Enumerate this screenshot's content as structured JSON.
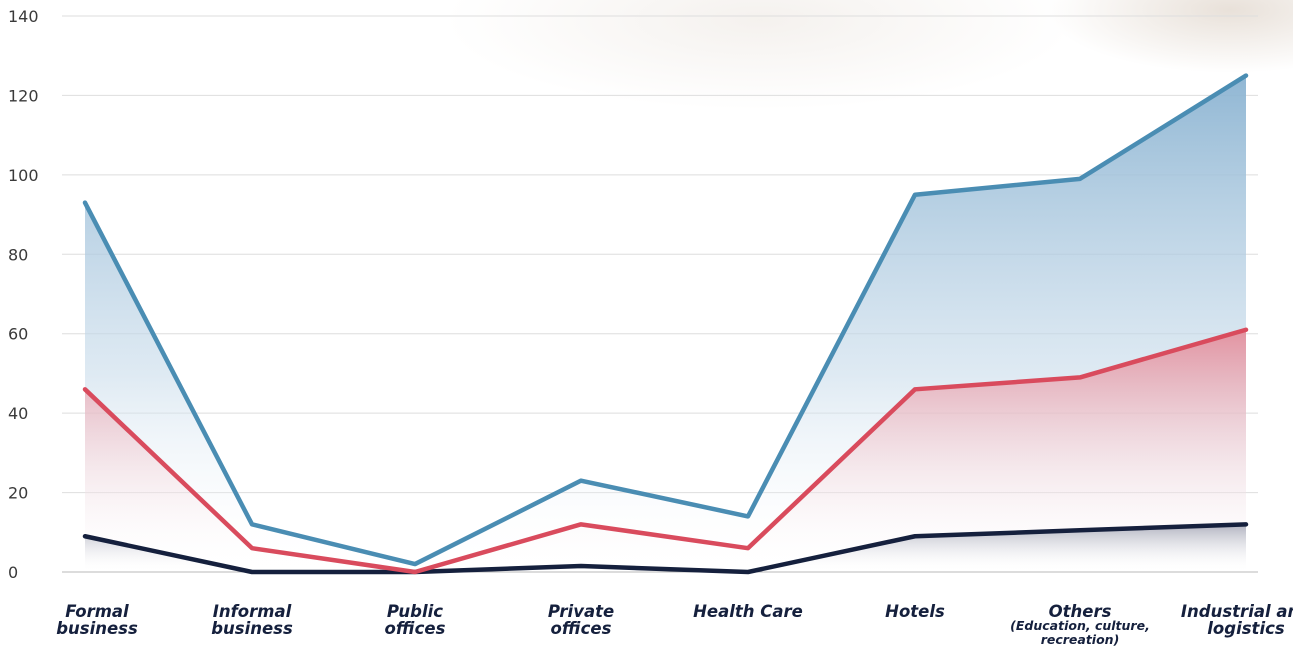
{
  "chart_data": {
    "type": "area",
    "title": "",
    "xlabel": "",
    "ylabel": "",
    "ylim": [
      0,
      140
    ],
    "yticks": [
      0,
      20,
      40,
      60,
      80,
      100,
      120,
      140
    ],
    "grid": true,
    "legend": "none",
    "categories": [
      [
        "Formal",
        "business"
      ],
      [
        "Informal",
        "business"
      ],
      [
        "Public",
        "offices"
      ],
      [
        "Private",
        "offices"
      ],
      [
        "Health Care"
      ],
      [
        "Hotels"
      ],
      [
        "Others",
        "(Education, culture,",
        "recreation)"
      ],
      [
        "Industrial and",
        "logistics"
      ]
    ],
    "series": [
      {
        "color": "#4a8db3",
        "values": [
          93,
          12,
          2,
          23,
          14,
          95,
          99,
          125
        ]
      },
      {
        "color": "#d94b5d",
        "values": [
          46,
          6,
          0,
          12,
          6,
          46,
          49,
          61
        ]
      },
      {
        "color": "#15203d",
        "values": [
          9,
          0,
          0,
          1.5,
          0,
          9,
          10.5,
          12
        ]
      }
    ]
  }
}
